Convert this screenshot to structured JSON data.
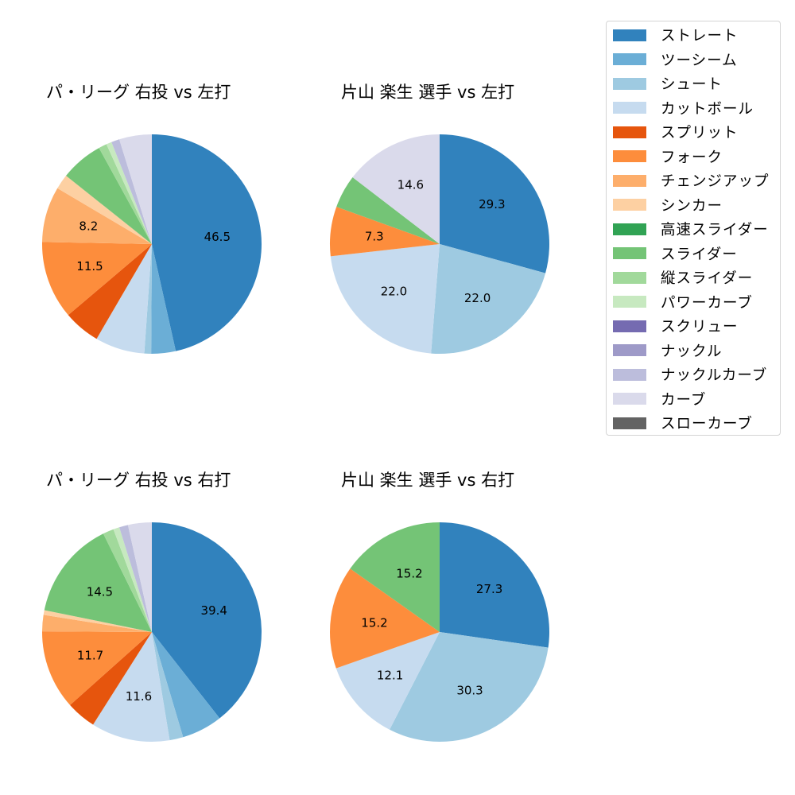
{
  "legend": {
    "items": [
      {
        "label": "ストレート",
        "color": "#3182bd"
      },
      {
        "label": "ツーシーム",
        "color": "#6baed6"
      },
      {
        "label": "シュート",
        "color": "#9ecae1"
      },
      {
        "label": "カットボール",
        "color": "#c6dbef"
      },
      {
        "label": "スプリット",
        "color": "#e6550d"
      },
      {
        "label": "フォーク",
        "color": "#fd8d3c"
      },
      {
        "label": "チェンジアップ",
        "color": "#fdae6b"
      },
      {
        "label": "シンカー",
        "color": "#fdd0a2"
      },
      {
        "label": "高速スライダー",
        "color": "#31a354"
      },
      {
        "label": "スライダー",
        "color": "#74c476"
      },
      {
        "label": "縦スライダー",
        "color": "#a1d99b"
      },
      {
        "label": "パワーカーブ",
        "color": "#c7e9c0"
      },
      {
        "label": "スクリュー",
        "color": "#756bb1"
      },
      {
        "label": "ナックル",
        "color": "#9e9ac8"
      },
      {
        "label": "ナックルカーブ",
        "color": "#bcbddc"
      },
      {
        "label": "カーブ",
        "color": "#dadaeb"
      },
      {
        "label": "スローカーブ",
        "color": "#636363"
      }
    ]
  },
  "chart_data": [
    {
      "type": "pie",
      "title": "パ・リーグ 右投 vs 左打",
      "start_angle": 90,
      "direction": "clockwise",
      "categories": [
        "ストレート",
        "ツーシーム",
        "シュート",
        "カットボール",
        "スプリット",
        "フォーク",
        "チェンジアップ",
        "シンカー",
        "スライダー",
        "縦スライダー",
        "パワーカーブ",
        "ナックルカーブ",
        "カーブ"
      ],
      "values": [
        46.5,
        3.6,
        1.0,
        7.3,
        5.4,
        11.5,
        8.2,
        2.2,
        6.3,
        1.2,
        0.8,
        1.2,
        4.8
      ],
      "labels_shown": [
        "46.5",
        "",
        "",
        "",
        "",
        "11.5",
        "8.2",
        "",
        "",
        "",
        "",
        "",
        ""
      ]
    },
    {
      "type": "pie",
      "title": "片山 楽生 選手 vs 左打",
      "start_angle": 90,
      "direction": "clockwise",
      "categories": [
        "ストレート",
        "シュート",
        "カットボール",
        "フォーク",
        "スライダー",
        "カーブ"
      ],
      "values": [
        29.3,
        22.0,
        22.0,
        7.3,
        4.9,
        14.6
      ],
      "labels_shown": [
        "29.3",
        "22.0",
        "22.0",
        "7.3",
        "",
        "14.6"
      ]
    },
    {
      "type": "pie",
      "title": "パ・リーグ 右投 vs 右打",
      "start_angle": 90,
      "direction": "clockwise",
      "categories": [
        "ストレート",
        "ツーシーム",
        "シュート",
        "カットボール",
        "スプリット",
        "フォーク",
        "チェンジアップ",
        "シンカー",
        "スライダー",
        "縦スライダー",
        "パワーカーブ",
        "ナックルカーブ",
        "カーブ"
      ],
      "values": [
        39.4,
        6.0,
        2.0,
        11.6,
        4.4,
        11.7,
        2.4,
        0.7,
        14.5,
        1.6,
        0.9,
        1.3,
        3.5
      ],
      "labels_shown": [
        "39.4",
        "",
        "",
        "11.6",
        "",
        "11.7",
        "",
        "",
        "14.5",
        "",
        "",
        "",
        ""
      ]
    },
    {
      "type": "pie",
      "title": "片山 楽生 選手 vs 右打",
      "start_angle": 90,
      "direction": "clockwise",
      "categories": [
        "ストレート",
        "シュート",
        "カットボール",
        "フォーク",
        "スライダー"
      ],
      "values": [
        27.3,
        30.3,
        12.1,
        15.2,
        15.2
      ],
      "labels_shown": [
        "27.3",
        "30.3",
        "12.1",
        "15.2",
        "15.2"
      ]
    }
  ],
  "panels": [
    {
      "title": "パ・リーグ 右投 vs 左打"
    },
    {
      "title": "片山 楽生 選手 vs 左打"
    },
    {
      "title": "パ・リーグ 右投 vs 右打"
    },
    {
      "title": "片山 楽生 選手 vs 右打"
    }
  ]
}
